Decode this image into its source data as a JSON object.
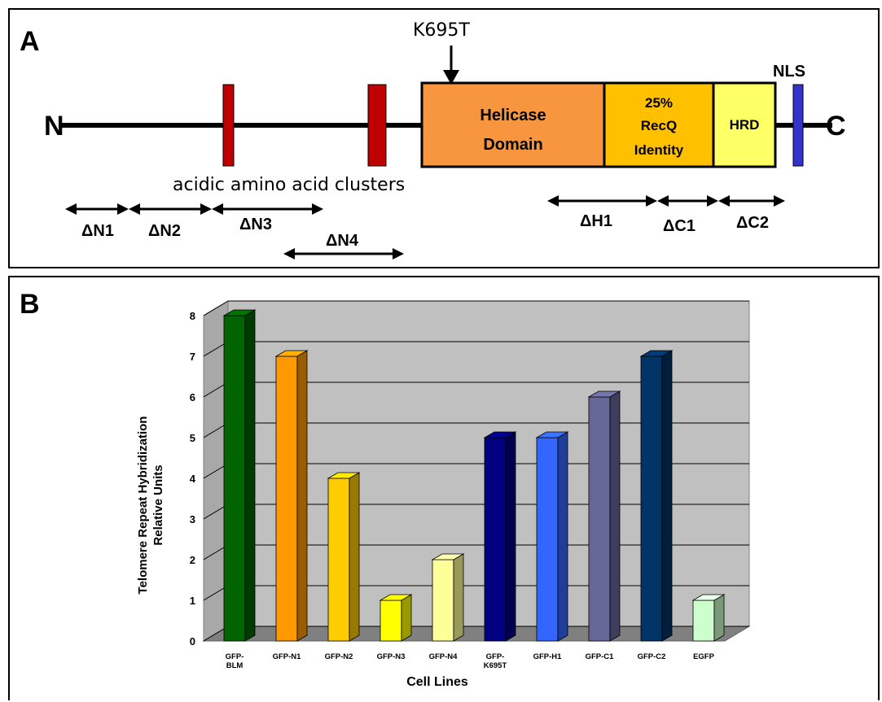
{
  "panel_a": {
    "letter": "A",
    "mutation_label": "K695T",
    "n_terminus": "N",
    "c_terminus": "C",
    "nls_label": "NLS",
    "acidic_label": "acidic amino acid clusters",
    "domains": [
      {
        "key": "helicase",
        "lines": [
          "Helicase",
          "Domain"
        ],
        "color": "#F7963F"
      },
      {
        "key": "recq",
        "lines": [
          "25%",
          "RecQ",
          "Identity"
        ],
        "color": "#FFC000"
      },
      {
        "key": "hrd",
        "lines": [
          "HRD"
        ],
        "color": "#FFFF66"
      }
    ],
    "acidic_color": "#C00000",
    "nls_color": "#3333CC",
    "deletions": [
      "ΔN1",
      "ΔN2",
      "ΔN3",
      "ΔN4",
      "ΔH1",
      "ΔC1",
      "ΔC2"
    ]
  },
  "panel_b": {
    "letter": "B"
  },
  "chart_data": {
    "type": "bar",
    "categories": [
      [
        "GFP-",
        "BLM"
      ],
      [
        "GFP-N1"
      ],
      [
        "GFP-N2"
      ],
      [
        "GFP-N3"
      ],
      [
        "GFP-N4"
      ],
      [
        "GFP-",
        "K695T"
      ],
      [
        "GFP-H1"
      ],
      [
        "GFP-C1"
      ],
      [
        "GFP-C2"
      ],
      [
        "EGFP"
      ]
    ],
    "values": [
      8,
      7,
      4,
      1,
      2,
      5,
      5,
      6,
      7,
      1
    ],
    "colors": [
      "#006400",
      "#FF9900",
      "#FFCC00",
      "#FFFF00",
      "#FFFF99",
      "#000080",
      "#3366FF",
      "#666699",
      "#003366",
      "#CCFFCC"
    ],
    "xlabel": "Cell  Lines",
    "ylabel_lines": [
      "Telomere  Repeat  Hybridization",
      "Relative  Units"
    ],
    "ylim": [
      0,
      8
    ],
    "yticks": [
      0,
      1,
      2,
      3,
      4,
      5,
      6,
      7,
      8
    ],
    "grid": true,
    "background": "#C0C0C0"
  }
}
